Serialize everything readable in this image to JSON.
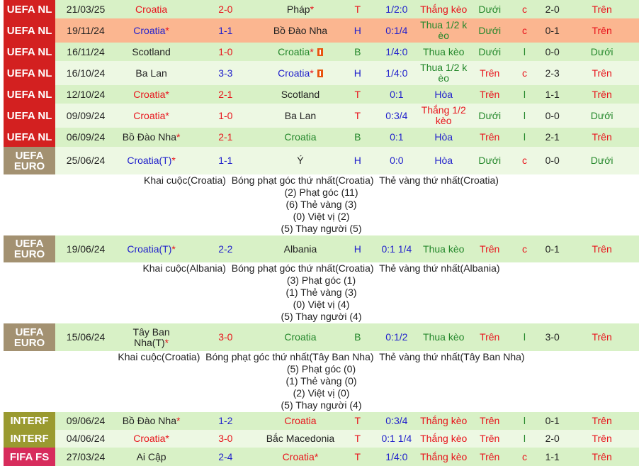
{
  "colors": {
    "UEFA NL": "#d32020",
    "UEFA EURO": "#a39171",
    "INTERF": "#9a9a30",
    "FIFA FS": "#d72c5c",
    "row_a": "#d8f1c6",
    "row_b": "#edf8e3",
    "row_hl": "#fbb690"
  },
  "matches": [
    {
      "league": "UEFA NL",
      "bg": "row_a",
      "h": 26,
      "date": "21/03/25",
      "home": "Croatia",
      "home_c": "red",
      "home_star": "",
      "score": "2-0",
      "score_c": "red",
      "away": "Pháp",
      "away_c": "black",
      "away_star": "*",
      "away_card": false,
      "res": "T",
      "hc": "1/2:0",
      "keo": "Thắng kèo",
      "keo_c": "red",
      "ou": "Dưới",
      "cl": "c",
      "ht": "2-0",
      "ou2": "Trên"
    },
    {
      "league": "UEFA NL",
      "bg": "row_hl",
      "h": 34,
      "date": "19/11/24",
      "home": "Croatia",
      "home_c": "blue",
      "home_star": "*",
      "score": "1-1",
      "score_c": "blue",
      "away": "Bồ Đào Nha",
      "away_c": "black",
      "away_star": "",
      "away_card": false,
      "res": "H",
      "hc": "0:1/4",
      "keo": "Thua 1/2 k èo",
      "keo_c": "green",
      "ou": "Dưới",
      "cl": "c",
      "ht": "0-1",
      "ou2": "Trên"
    },
    {
      "league": "UEFA NL",
      "bg": "row_a",
      "h": 26,
      "date": "16/11/24",
      "home": "Scotland",
      "home_c": "black",
      "home_star": "",
      "score": "1-0",
      "score_c": "red",
      "away": "Croatia",
      "away_c": "green",
      "away_star": "*",
      "away_card": true,
      "res": "B",
      "hc": "1/4:0",
      "keo": "Thua kèo",
      "keo_c": "green",
      "ou": "Dưới",
      "cl": "l",
      "ht": "0-0",
      "ou2": "Dưới"
    },
    {
      "league": "UEFA NL",
      "bg": "row_b",
      "h": 34,
      "date": "16/10/24",
      "home": "Ba Lan",
      "home_c": "black",
      "home_star": "",
      "score": "3-3",
      "score_c": "blue",
      "away": "Croatia",
      "away_c": "blue",
      "away_star": "*",
      "away_card": true,
      "res": "H",
      "hc": "1/4:0",
      "keo": "Thua 1/2 k èo",
      "keo_c": "green",
      "ou": "Trên",
      "cl": "c",
      "ht": "2-3",
      "ou2": "Trên"
    },
    {
      "league": "UEFA NL",
      "bg": "row_a",
      "h": 26,
      "date": "12/10/24",
      "home": "Croatia",
      "home_c": "red",
      "home_star": "*",
      "score": "2-1",
      "score_c": "red",
      "away": "Scotland",
      "away_c": "black",
      "away_star": "",
      "away_card": false,
      "res": "T",
      "hc": "0:1",
      "keo": "Hòa",
      "keo_c": "blue",
      "ou": "Trên",
      "cl": "l",
      "ht": "1-1",
      "ou2": "Trên"
    },
    {
      "league": "UEFA NL",
      "bg": "row_b",
      "h": 34,
      "date": "09/09/24",
      "home": "Croatia",
      "home_c": "red",
      "home_star": "*",
      "score": "1-0",
      "score_c": "red",
      "away": "Ba Lan",
      "away_c": "black",
      "away_star": "",
      "away_card": false,
      "res": "T",
      "hc": "0:3/4",
      "keo": "Thắng 1/2 kèo",
      "keo_c": "red",
      "ou": "Dưới",
      "cl": "l",
      "ht": "0-0",
      "ou2": "Dưới"
    },
    {
      "league": "UEFA NL",
      "bg": "row_a",
      "h": 27,
      "date": "06/09/24",
      "home": "Bồ Đào Nha",
      "home_c": "black",
      "home_star": "*",
      "score": "2-1",
      "score_c": "red",
      "away": "Croatia",
      "away_c": "green",
      "away_star": "",
      "away_card": false,
      "res": "B",
      "hc": "0:1",
      "keo": "Hòa",
      "keo_c": "blue",
      "ou": "Trên",
      "cl": "l",
      "ht": "2-1",
      "ou2": "Trên"
    },
    {
      "league": "UEFA EURO",
      "bg": "row_b",
      "h": 39,
      "date": "25/06/24",
      "home": "Croatia(T)",
      "home_c": "blue",
      "home_star": "*",
      "score": "1-1",
      "score_c": "blue",
      "away": "Ý",
      "away_c": "black",
      "away_star": "",
      "away_card": false,
      "res": "H",
      "hc": "0:0",
      "keo": "Hòa",
      "keo_c": "blue",
      "ou": "Dưới",
      "cl": "c",
      "ht": "0-0",
      "ou2": "Dưới",
      "details": [
        "Khai cuộc(Croatia)  Bóng phạt góc thứ nhất(Croatia)  Thẻ vàng thứ nhất(Croatia)",
        "(2) Phạt góc (11)",
        "(6) Thẻ vàng (3)",
        "(0) Việt vị (2)",
        "(5) Thay người (5)"
      ]
    },
    {
      "league": "UEFA EURO",
      "bg": "row_a",
      "h": 38,
      "date": "19/06/24",
      "home": "Croatia(T)",
      "home_c": "blue",
      "home_star": "*",
      "score": "2-2",
      "score_c": "blue",
      "away": "Albania",
      "away_c": "black",
      "away_star": "",
      "away_card": false,
      "res": "H",
      "hc": "0:1 1/4",
      "keo": "Thua kèo",
      "keo_c": "green",
      "ou": "Trên",
      "cl": "c",
      "ht": "0-1",
      "ou2": "Trên",
      "details": [
        "Khai cuộc(Albania)  Bóng phạt góc thứ nhất(Croatia)  Thẻ vàng thứ nhất(Albania)",
        "(3) Phạt góc (1)",
        "(1) Thẻ vàng (3)",
        "(0) Việt vị (4)",
        "(5) Thay người (4)"
      ]
    },
    {
      "league": "UEFA EURO",
      "bg": "row_a",
      "h": 39,
      "date": "15/06/24",
      "home": "Tây Ban Nha(T)",
      "home_c": "black",
      "home_star": "*",
      "score": "3-0",
      "score_c": "red",
      "away": "Croatia",
      "away_c": "green",
      "away_star": "",
      "away_card": false,
      "res": "B",
      "hc": "0:1/2",
      "keo": "Thua kèo",
      "keo_c": "green",
      "ou": "Trên",
      "cl": "l",
      "ht": "3-0",
      "ou2": "Trên",
      "details": [
        "Khai cuộc(Croatia)  Bóng phạt góc thứ nhất(Tây Ban Nha)  Thẻ vàng thứ nhất(Tây Ban Nha)",
        "(5) Phạt góc (0)",
        "(1) Thẻ vàng (0)",
        "(2) Việt vị (0)",
        "(5) Thay người (4)"
      ]
    },
    {
      "league": "INTERF",
      "bg": "row_a",
      "h": 25,
      "date": "09/06/24",
      "home": "Bồ Đào Nha",
      "home_c": "black",
      "home_star": "*",
      "score": "1-2",
      "score_c": "blue",
      "away": "Croatia",
      "away_c": "red",
      "away_star": "",
      "away_card": false,
      "res": "T",
      "hc": "0:3/4",
      "keo": "Thắng kèo",
      "keo_c": "red",
      "ou": "Trên",
      "cl": "l",
      "ht": "0-1",
      "ou2": "Trên"
    },
    {
      "league": "INTERF",
      "bg": "row_b",
      "h": 25,
      "date": "04/06/24",
      "home": "Croatia",
      "home_c": "red",
      "home_star": "*",
      "score": "3-0",
      "score_c": "red",
      "away": "Bắc Macedonia",
      "away_c": "black",
      "away_star": "",
      "away_card": false,
      "res": "T",
      "hc": "0:1 1/4",
      "keo": "Thắng kèo",
      "keo_c": "red",
      "ou": "Trên",
      "cl": "l",
      "ht": "2-0",
      "ou2": "Trên"
    },
    {
      "league": "FIFA FS",
      "bg": "row_a",
      "h": 26,
      "date": "27/03/24",
      "home": "Ai Cập",
      "home_c": "black",
      "home_star": "",
      "score": "2-4",
      "score_c": "blue",
      "away": "Croatia",
      "away_c": "red",
      "away_star": "*",
      "away_card": false,
      "res": "T",
      "hc": "1/4:0",
      "keo": "Thắng kèo",
      "keo_c": "red",
      "ou": "Trên",
      "cl": "c",
      "ht": "1-1",
      "ou2": "Trên"
    }
  ]
}
